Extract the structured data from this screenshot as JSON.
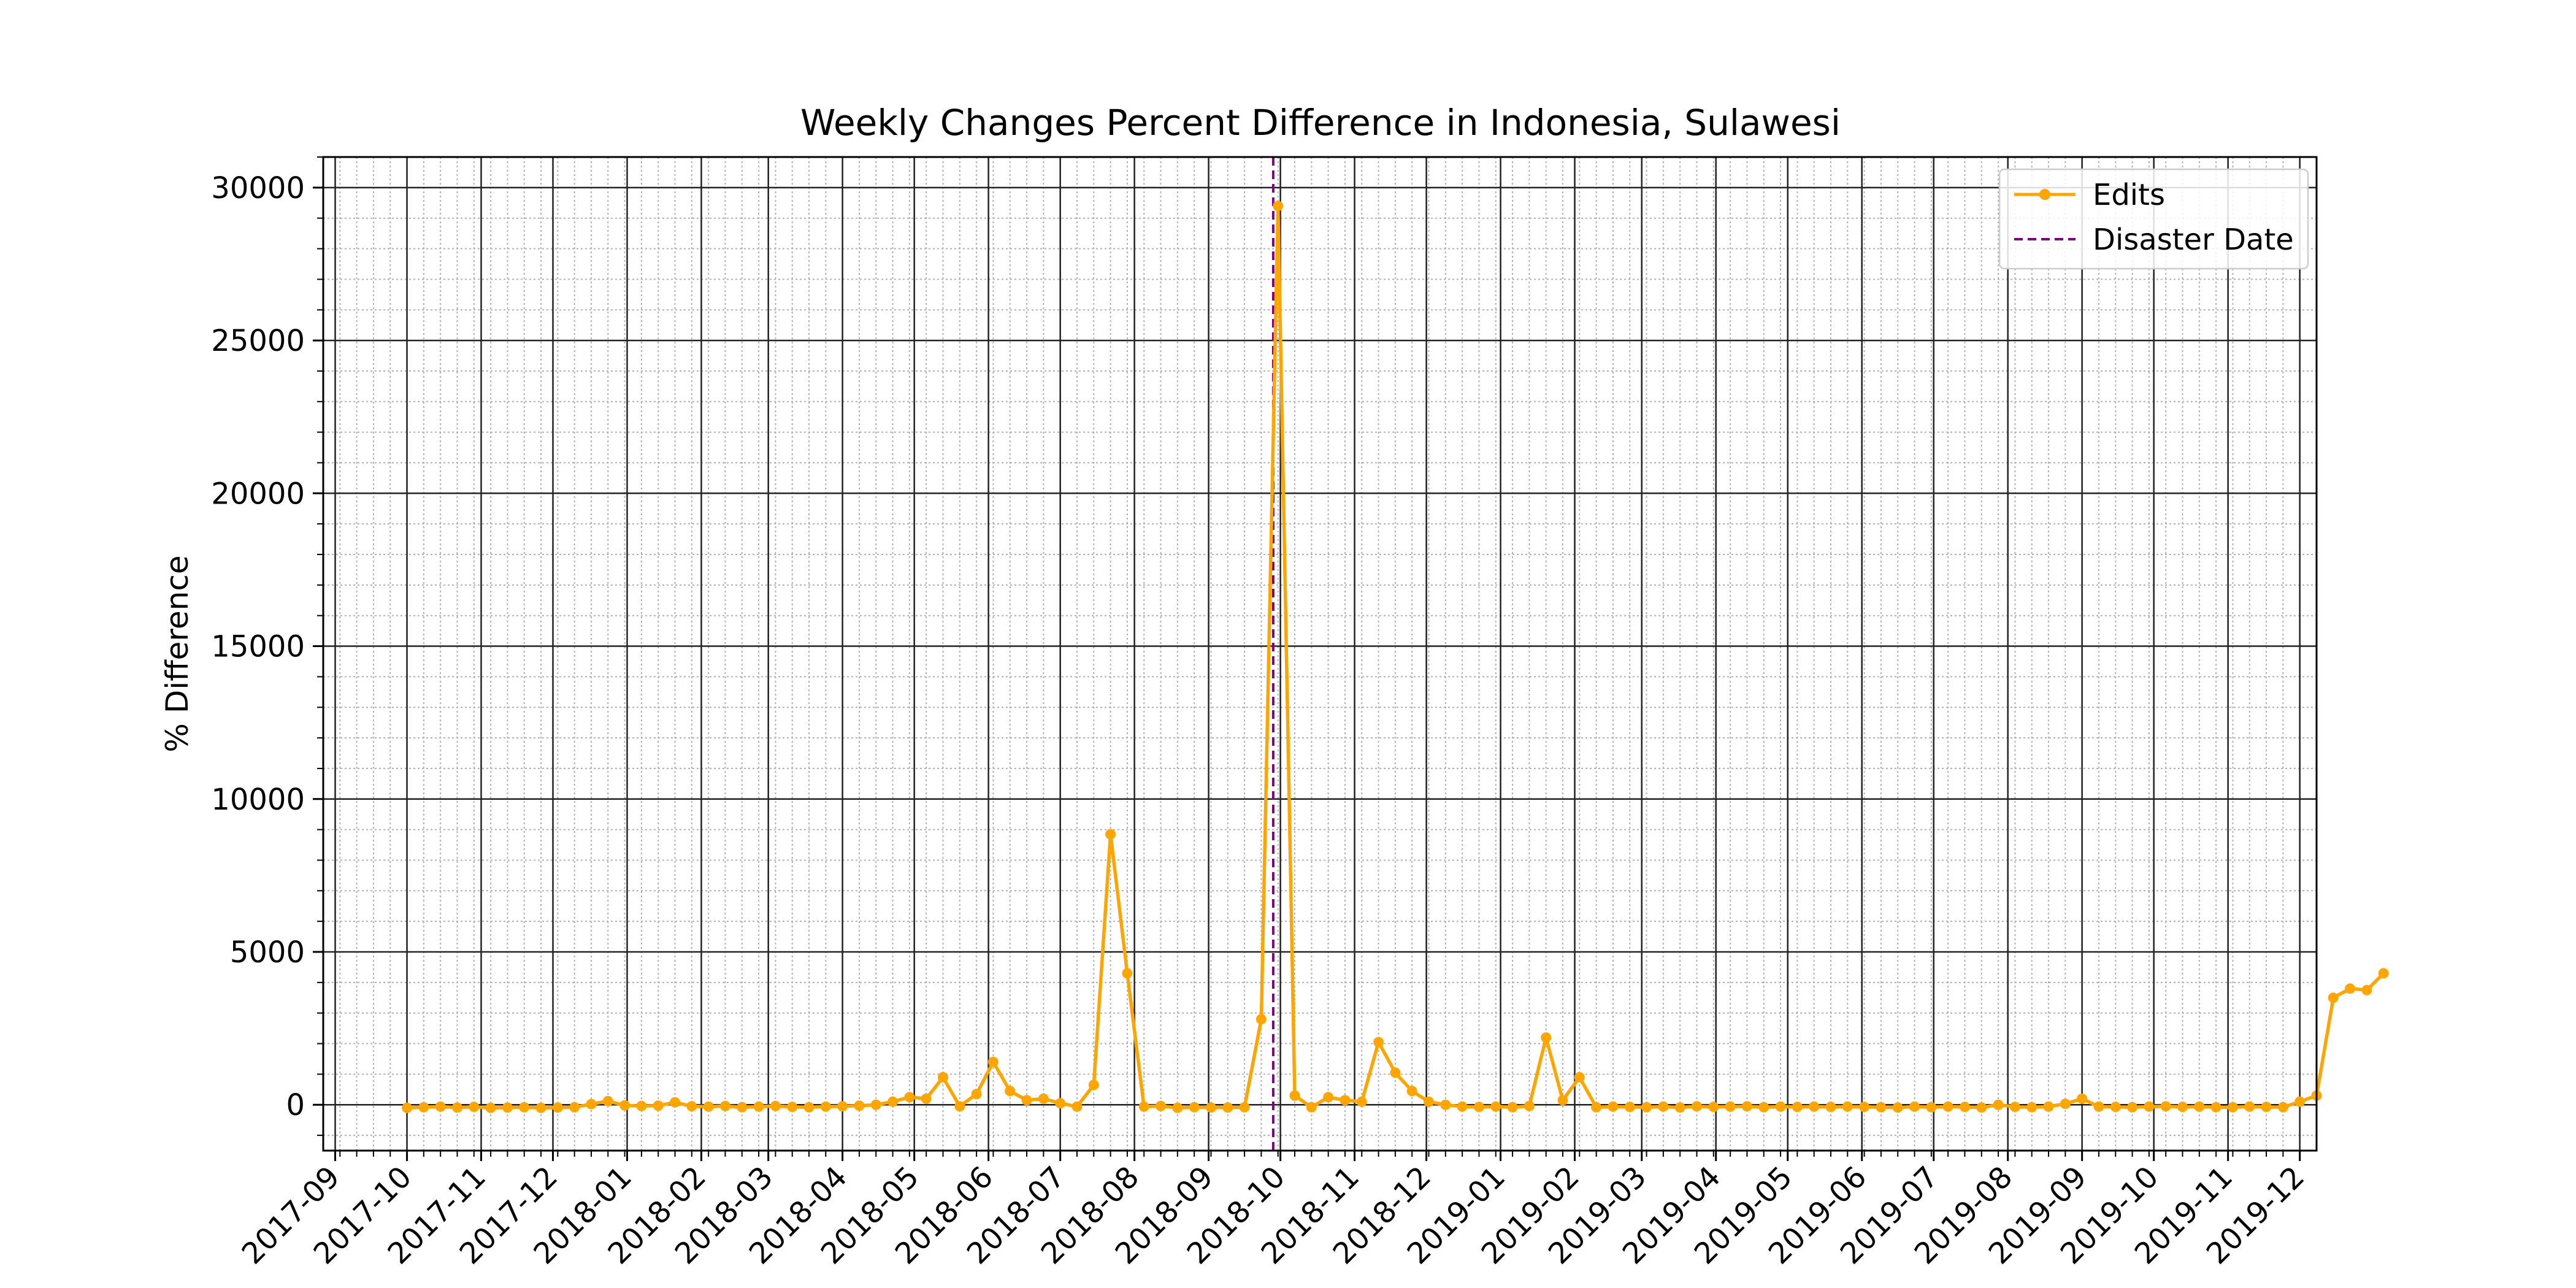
{
  "chart_data": {
    "type": "line",
    "title": "Weekly Changes Percent Difference in Indonesia, Sulawesi",
    "xlabel": "",
    "ylabel": "% Difference",
    "ylim": [
      -1500,
      31000
    ],
    "xlim": [
      "2017-08-27",
      "2019-12-08"
    ],
    "yticks": [
      0,
      5000,
      10000,
      15000,
      20000,
      25000,
      30000
    ],
    "xticks": [
      "2017-09",
      "2017-10",
      "2017-11",
      "2017-12",
      "2018-01",
      "2018-02",
      "2018-03",
      "2018-04",
      "2018-05",
      "2018-06",
      "2018-07",
      "2018-08",
      "2018-09",
      "2018-10",
      "2018-11",
      "2018-12",
      "2019-01",
      "2019-02",
      "2019-03",
      "2019-04",
      "2019-05",
      "2019-06",
      "2019-07",
      "2019-08",
      "2019-09",
      "2019-10",
      "2019-11",
      "2019-12"
    ],
    "grid": {
      "major": true,
      "minor": true
    },
    "legend": {
      "position": "top-right"
    },
    "series": [
      {
        "name": "Edits",
        "color": "#ffa500",
        "start_date": "2017-10-01",
        "step_days": 7,
        "values": [
          -100,
          -80,
          -60,
          -90,
          -70,
          -100,
          -90,
          -80,
          -100,
          -90,
          -80,
          20,
          120,
          -20,
          -40,
          -30,
          80,
          -50,
          -60,
          -40,
          -80,
          -60,
          -40,
          -70,
          -80,
          -60,
          -50,
          -30,
          0,
          100,
          250,
          200,
          900,
          -50,
          350,
          1400,
          450,
          150,
          200,
          50,
          -60,
          650,
          8850,
          4300,
          -60,
          -40,
          -100,
          -80,
          -90,
          -90,
          -80,
          2800,
          29400,
          300,
          -80,
          250,
          150,
          100,
          2050,
          1050,
          450,
          100,
          0,
          -60,
          -70,
          -60,
          -80,
          -40,
          2200,
          150,
          900,
          -80,
          -60,
          -70,
          -80,
          -60,
          -90,
          -50,
          -70,
          -60,
          -50,
          -80,
          -60,
          -70,
          -60,
          -70,
          -60,
          -70,
          -80,
          -90,
          -60,
          -80,
          -60,
          -70,
          -90,
          0,
          -70,
          -80,
          -60,
          30,
          200,
          -60,
          -70,
          -80,
          -60,
          -50,
          -70,
          -60,
          -80,
          -80,
          -60,
          -70,
          -80,
          100,
          300,
          3500,
          3800,
          3750,
          4300
        ]
      },
      {
        "name": "Disaster Date",
        "color": "#800080",
        "kind": "vertical-line",
        "x": "2018-09-28"
      }
    ]
  }
}
